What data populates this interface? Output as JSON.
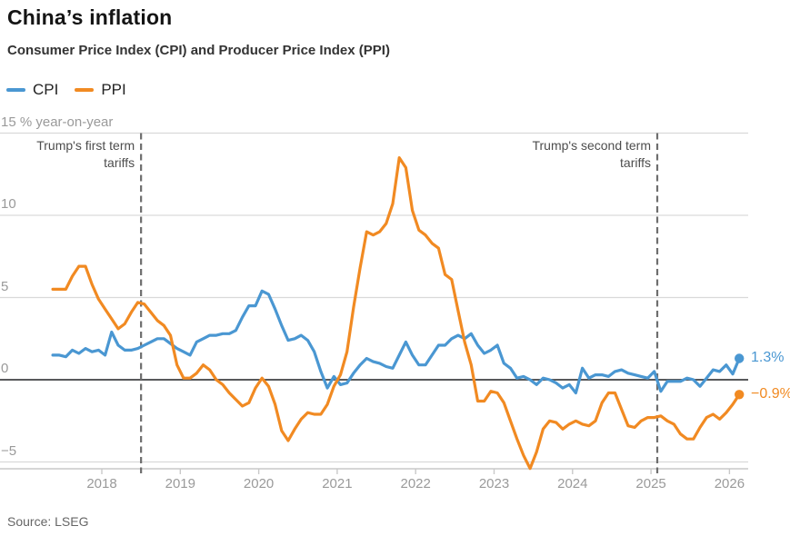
{
  "header": {
    "title": "China’s inflation",
    "subtitle": "Consumer Price Index (CPI) and Producer Price Index (PPI)"
  },
  "legend": {
    "items": [
      {
        "label": "CPI",
        "color": "#4a97d2"
      },
      {
        "label": "PPI",
        "color": "#f18a22"
      }
    ]
  },
  "source": "Source: LSEG",
  "colors": {
    "cpi": "#4a97d2",
    "ppi": "#f18a22",
    "gridline": "#d9d9d9",
    "zero_line": "#58595b",
    "axis_line": "#c9c9c9",
    "dashed_line": "#6e6e6e",
    "tick_label": "#9a9a9a"
  },
  "chart_data": {
    "type": "line",
    "title": "China’s inflation",
    "subtitle": "Consumer Price Index (CPI) and Producer Price Index (PPI)",
    "unit": "% year-on-year",
    "frequency": "monthly",
    "start": {
      "year": 2017,
      "month": 5
    },
    "y_axis": {
      "tick_values": [
        15,
        10,
        5,
        0,
        -5
      ],
      "tick_labels": [
        "15",
        "10",
        "5",
        "0",
        "−5"
      ],
      "unit_suffix": " % year-on-year",
      "range": [
        -5.5,
        15.2
      ],
      "zero_line": true,
      "grid": true
    },
    "x_axis": {
      "tick_years": [
        2018,
        2019,
        2020,
        2021,
        2022,
        2023,
        2024,
        2025,
        2026
      ]
    },
    "legend_position": "top-left",
    "series": [
      {
        "name": "CPI",
        "color": "#4a97d2",
        "end_label": "1.3%",
        "values": [
          1.5,
          1.5,
          1.4,
          1.8,
          1.6,
          1.9,
          1.7,
          1.8,
          1.5,
          2.9,
          2.1,
          1.8,
          1.8,
          1.9,
          2.1,
          2.3,
          2.5,
          2.5,
          2.2,
          1.9,
          1.7,
          1.5,
          2.3,
          2.5,
          2.7,
          2.7,
          2.8,
          2.8,
          3.0,
          3.8,
          4.5,
          4.5,
          5.4,
          5.2,
          4.3,
          3.3,
          2.4,
          2.5,
          2.7,
          2.4,
          1.7,
          0.5,
          -0.5,
          0.2,
          -0.3,
          -0.2,
          0.4,
          0.9,
          1.3,
          1.1,
          1.0,
          0.8,
          0.7,
          1.5,
          2.3,
          1.5,
          0.9,
          0.9,
          1.5,
          2.1,
          2.1,
          2.5,
          2.7,
          2.5,
          2.8,
          2.1,
          1.6,
          1.8,
          2.1,
          1.0,
          0.7,
          0.1,
          0.2,
          0.0,
          -0.3,
          0.1,
          0.0,
          -0.2,
          -0.5,
          -0.3,
          -0.8,
          0.7,
          0.1,
          0.3,
          0.3,
          0.2,
          0.5,
          0.6,
          0.4,
          0.3,
          0.2,
          0.1,
          0.5,
          -0.7,
          -0.1,
          -0.1,
          -0.1,
          0.1,
          0.0,
          -0.4,
          0.1,
          0.6,
          0.5,
          0.9,
          0.35,
          1.3
        ]
      },
      {
        "name": "PPI",
        "color": "#f18a22",
        "end_label": "−0.9%",
        "values": [
          5.5,
          5.5,
          5.5,
          6.3,
          6.9,
          6.9,
          5.8,
          4.9,
          4.3,
          3.7,
          3.1,
          3.4,
          4.1,
          4.7,
          4.6,
          4.1,
          3.6,
          3.3,
          2.7,
          0.9,
          0.1,
          0.1,
          0.4,
          0.9,
          0.6,
          0.0,
          -0.3,
          -0.8,
          -1.2,
          -1.6,
          -1.4,
          -0.5,
          0.1,
          -0.4,
          -1.5,
          -3.1,
          -3.7,
          -3.0,
          -2.4,
          -2.0,
          -2.1,
          -2.1,
          -1.5,
          -0.4,
          0.3,
          1.7,
          4.4,
          6.8,
          9.0,
          8.8,
          9.0,
          9.5,
          10.7,
          13.5,
          12.9,
          10.3,
          9.1,
          8.8,
          8.3,
          8.0,
          6.4,
          6.1,
          4.2,
          2.3,
          0.9,
          -1.3,
          -1.3,
          -0.7,
          -0.8,
          -1.4,
          -2.5,
          -3.6,
          -4.6,
          -5.4,
          -4.4,
          -3.0,
          -2.5,
          -2.6,
          -3.0,
          -2.7,
          -2.5,
          -2.7,
          -2.8,
          -2.5,
          -1.4,
          -0.8,
          -0.8,
          -1.8,
          -2.8,
          -2.9,
          -2.5,
          -2.3,
          -2.3,
          -2.2,
          -2.5,
          -2.7,
          -3.3,
          -3.6,
          -3.6,
          -2.9,
          -2.3,
          -2.1,
          -2.4,
          -2.0,
          -1.5,
          -0.9
        ]
      }
    ],
    "annotations": [
      {
        "lines": [
          "Trump's first term",
          "tariffs"
        ],
        "year_x": 2018.5
      },
      {
        "lines": [
          "Trump's second term",
          "tariffs"
        ],
        "year_x": 2025.08
      }
    ]
  }
}
